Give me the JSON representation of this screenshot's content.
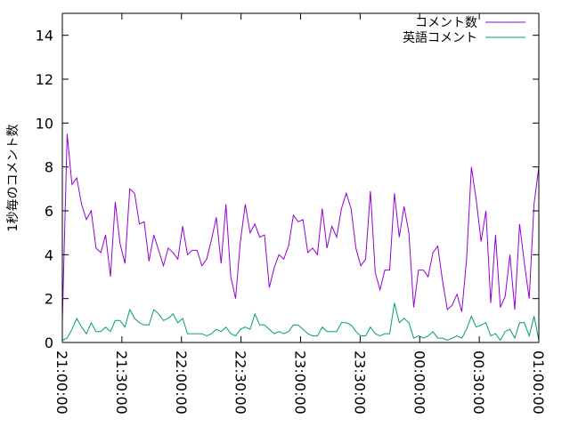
{
  "chart_data": {
    "type": "line",
    "ylabel": "1秒毎のコメント数",
    "xlabel": "",
    "title": "",
    "ylim": [
      0,
      15
    ],
    "yticks": [
      0,
      2,
      4,
      6,
      8,
      10,
      12,
      14
    ],
    "xlim_minutes": [
      0,
      240
    ],
    "xticks": [
      {
        "minutes": 0,
        "label": "21:00:00"
      },
      {
        "minutes": 30,
        "label": "21:30:00"
      },
      {
        "minutes": 60,
        "label": "22:00:00"
      },
      {
        "minutes": 90,
        "label": "22:30:00"
      },
      {
        "minutes": 120,
        "label": "23:00:00"
      },
      {
        "minutes": 150,
        "label": "23:30:00"
      },
      {
        "minutes": 180,
        "label": "00:00:00"
      },
      {
        "minutes": 210,
        "label": "00:30:00"
      },
      {
        "minutes": 240,
        "label": "01:00:00"
      }
    ],
    "grid": false,
    "legend_position": "top-right",
    "series": [
      {
        "name": "コメント数",
        "color": "#9400d3",
        "values": [
          1.0,
          9.5,
          7.2,
          7.5,
          6.3,
          5.6,
          6.0,
          4.3,
          4.1,
          4.9,
          3.0,
          6.4,
          4.5,
          3.6,
          7.0,
          6.8,
          5.4,
          5.5,
          3.7,
          4.9,
          4.2,
          3.5,
          4.3,
          4.1,
          3.8,
          5.3,
          4.0,
          4.2,
          4.2,
          3.5,
          3.8,
          4.7,
          5.7,
          3.6,
          6.3,
          3.0,
          2.0,
          4.6,
          6.3,
          5.0,
          5.4,
          4.8,
          4.9,
          2.5,
          3.4,
          4.0,
          3.8,
          4.4,
          5.8,
          5.5,
          5.6,
          4.1,
          4.3,
          4.0,
          6.1,
          4.3,
          5.3,
          4.8,
          6.1,
          6.8,
          6.1,
          4.3,
          3.5,
          3.8,
          6.9,
          3.2,
          2.4,
          3.3,
          3.3,
          6.8,
          4.8,
          6.2,
          5.0,
          1.6,
          3.3,
          3.3,
          3.0,
          4.1,
          4.4,
          2.8,
          1.5,
          1.7,
          2.2,
          1.4,
          3.8,
          8.0,
          6.5,
          4.6,
          6.0,
          1.8,
          4.9,
          1.6,
          2.1,
          4.0,
          1.5,
          5.4,
          3.6,
          2.0,
          6.3,
          8.0
        ]
      },
      {
        "name": "英語コメント",
        "color": "#009e73",
        "values": [
          0.1,
          0.2,
          0.6,
          1.1,
          0.7,
          0.4,
          0.9,
          0.5,
          0.5,
          0.7,
          0.5,
          1.0,
          1.0,
          0.7,
          1.5,
          1.1,
          0.9,
          0.8,
          0.8,
          1.5,
          1.3,
          1.0,
          1.1,
          1.3,
          0.9,
          1.1,
          0.4,
          0.4,
          0.4,
          0.4,
          0.3,
          0.4,
          0.6,
          0.5,
          0.7,
          0.4,
          0.3,
          0.6,
          0.7,
          0.6,
          1.3,
          0.8,
          0.8,
          0.6,
          0.4,
          0.5,
          0.4,
          0.5,
          0.8,
          0.8,
          0.6,
          0.4,
          0.3,
          0.3,
          0.7,
          0.5,
          0.5,
          0.5,
          0.9,
          0.9,
          0.8,
          0.5,
          0.3,
          0.3,
          0.7,
          0.4,
          0.3,
          0.4,
          0.4,
          1.8,
          0.9,
          1.1,
          0.9,
          0.2,
          0.3,
          0.2,
          0.3,
          0.5,
          0.2,
          0.2,
          0.1,
          0.2,
          0.3,
          0.2,
          0.6,
          1.2,
          0.7,
          0.8,
          0.9,
          0.3,
          0.4,
          0.1,
          0.5,
          0.6,
          0.2,
          0.9,
          0.9,
          0.3,
          1.2,
          0.1
        ]
      }
    ]
  }
}
